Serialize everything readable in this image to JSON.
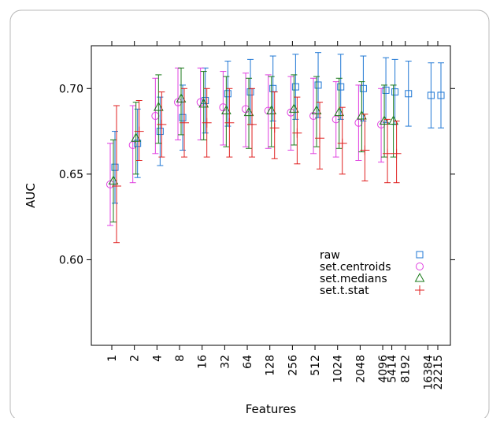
{
  "chart_data": {
    "type": "scatter",
    "xlabel": "Features",
    "ylabel": "AUC",
    "x_tick_labels": [
      "1",
      "2",
      "4",
      "8",
      "16",
      "32",
      "64",
      "128",
      "256",
      "512",
      "1024",
      "2048",
      "4096",
      "5414",
      "8192",
      "16384",
      "22215"
    ],
    "y_ticks": [
      0.6,
      0.65,
      0.7
    ],
    "y_tick_labels": [
      "0.60",
      "0.65",
      "0.70"
    ],
    "ylim": [
      0.55,
      0.725
    ],
    "xscale": "log2",
    "error_bars": true,
    "legend_position": "inside-bottom-right",
    "series": [
      {
        "name": "raw",
        "marker": "square",
        "color": "#1f77d4",
        "points": [
          {
            "x": 1,
            "y": 0.654,
            "lo": 0.633,
            "hi": 0.675
          },
          {
            "x": 2,
            "y": 0.668,
            "lo": 0.648,
            "hi": 0.688
          },
          {
            "x": 4,
            "y": 0.675,
            "lo": 0.655,
            "hi": 0.695
          },
          {
            "x": 8,
            "y": 0.683,
            "lo": 0.664,
            "hi": 0.702
          },
          {
            "x": 16,
            "y": 0.693,
            "lo": 0.674,
            "hi": 0.712
          },
          {
            "x": 32,
            "y": 0.697,
            "lo": 0.678,
            "hi": 0.716
          },
          {
            "x": 64,
            "y": 0.698,
            "lo": 0.679,
            "hi": 0.717
          },
          {
            "x": 128,
            "y": 0.7,
            "lo": 0.681,
            "hi": 0.719
          },
          {
            "x": 256,
            "y": 0.701,
            "lo": 0.682,
            "hi": 0.72
          },
          {
            "x": 512,
            "y": 0.702,
            "lo": 0.683,
            "hi": 0.721
          },
          {
            "x": 1024,
            "y": 0.701,
            "lo": 0.682,
            "hi": 0.72
          },
          {
            "x": 2048,
            "y": 0.7,
            "lo": 0.681,
            "hi": 0.719
          },
          {
            "x": 4096,
            "y": 0.699,
            "lo": 0.68,
            "hi": 0.718
          },
          {
            "x": 5414,
            "y": 0.698,
            "lo": 0.679,
            "hi": 0.717
          },
          {
            "x": 8192,
            "y": 0.697,
            "lo": 0.678,
            "hi": 0.716
          },
          {
            "x": 16384,
            "y": 0.696,
            "lo": 0.677,
            "hi": 0.715
          },
          {
            "x": 22215,
            "y": 0.696,
            "lo": 0.677,
            "hi": 0.715
          }
        ]
      },
      {
        "name": "set.centroids",
        "marker": "circle",
        "color": "#e040e0",
        "points": [
          {
            "x": 1,
            "y": 0.644,
            "lo": 0.62,
            "hi": 0.668
          },
          {
            "x": 2,
            "y": 0.667,
            "lo": 0.645,
            "hi": 0.69
          },
          {
            "x": 4,
            "y": 0.684,
            "lo": 0.662,
            "hi": 0.706
          },
          {
            "x": 8,
            "y": 0.692,
            "lo": 0.67,
            "hi": 0.712
          },
          {
            "x": 16,
            "y": 0.692,
            "lo": 0.67,
            "hi": 0.712
          },
          {
            "x": 32,
            "y": 0.689,
            "lo": 0.667,
            "hi": 0.71
          },
          {
            "x": 64,
            "y": 0.688,
            "lo": 0.666,
            "hi": 0.709
          },
          {
            "x": 128,
            "y": 0.687,
            "lo": 0.665,
            "hi": 0.708
          },
          {
            "x": 256,
            "y": 0.686,
            "lo": 0.664,
            "hi": 0.707
          },
          {
            "x": 512,
            "y": 0.684,
            "lo": 0.662,
            "hi": 0.706
          },
          {
            "x": 1024,
            "y": 0.682,
            "lo": 0.66,
            "hi": 0.704
          },
          {
            "x": 2048,
            "y": 0.68,
            "lo": 0.658,
            "hi": 0.702
          },
          {
            "x": 4096,
            "y": 0.679,
            "lo": 0.657,
            "hi": 0.7
          }
        ]
      },
      {
        "name": "set.medians",
        "marker": "triangle",
        "color": "#1a7a1a",
        "points": [
          {
            "x": 1,
            "y": 0.646,
            "lo": 0.622,
            "hi": 0.67
          },
          {
            "x": 2,
            "y": 0.671,
            "lo": 0.65,
            "hi": 0.692
          },
          {
            "x": 4,
            "y": 0.689,
            "lo": 0.668,
            "hi": 0.708
          },
          {
            "x": 8,
            "y": 0.694,
            "lo": 0.673,
            "hi": 0.712
          },
          {
            "x": 16,
            "y": 0.691,
            "lo": 0.67,
            "hi": 0.71
          },
          {
            "x": 32,
            "y": 0.687,
            "lo": 0.666,
            "hi": 0.707
          },
          {
            "x": 64,
            "y": 0.686,
            "lo": 0.665,
            "hi": 0.706
          },
          {
            "x": 128,
            "y": 0.687,
            "lo": 0.666,
            "hi": 0.707
          },
          {
            "x": 256,
            "y": 0.688,
            "lo": 0.667,
            "hi": 0.708
          },
          {
            "x": 512,
            "y": 0.687,
            "lo": 0.666,
            "hi": 0.707
          },
          {
            "x": 1024,
            "y": 0.686,
            "lo": 0.665,
            "hi": 0.706
          },
          {
            "x": 2048,
            "y": 0.684,
            "lo": 0.663,
            "hi": 0.704
          },
          {
            "x": 4096,
            "y": 0.681,
            "lo": 0.66,
            "hi": 0.702
          },
          {
            "x": 5414,
            "y": 0.681,
            "lo": 0.66,
            "hi": 0.702
          }
        ]
      },
      {
        "name": "set.t.stat",
        "marker": "plus",
        "color": "#e02020",
        "points": [
          {
            "x": 1,
            "y": 0.643,
            "lo": 0.61,
            "hi": 0.69
          },
          {
            "x": 2,
            "y": 0.675,
            "lo": 0.658,
            "hi": 0.693
          },
          {
            "x": 4,
            "y": 0.679,
            "lo": 0.66,
            "hi": 0.698
          },
          {
            "x": 8,
            "y": 0.68,
            "lo": 0.66,
            "hi": 0.7
          },
          {
            "x": 16,
            "y": 0.68,
            "lo": 0.66,
            "hi": 0.7
          },
          {
            "x": 32,
            "y": 0.68,
            "lo": 0.66,
            "hi": 0.7
          },
          {
            "x": 64,
            "y": 0.679,
            "lo": 0.66,
            "hi": 0.7
          },
          {
            "x": 128,
            "y": 0.677,
            "lo": 0.659,
            "hi": 0.698
          },
          {
            "x": 256,
            "y": 0.674,
            "lo": 0.656,
            "hi": 0.695
          },
          {
            "x": 512,
            "y": 0.671,
            "lo": 0.653,
            "hi": 0.692
          },
          {
            "x": 1024,
            "y": 0.668,
            "lo": 0.65,
            "hi": 0.689
          },
          {
            "x": 2048,
            "y": 0.664,
            "lo": 0.646,
            "hi": 0.685
          },
          {
            "x": 4096,
            "y": 0.662,
            "lo": 0.645,
            "hi": 0.682
          },
          {
            "x": 5414,
            "y": 0.662,
            "lo": 0.645,
            "hi": 0.681
          }
        ]
      }
    ]
  }
}
